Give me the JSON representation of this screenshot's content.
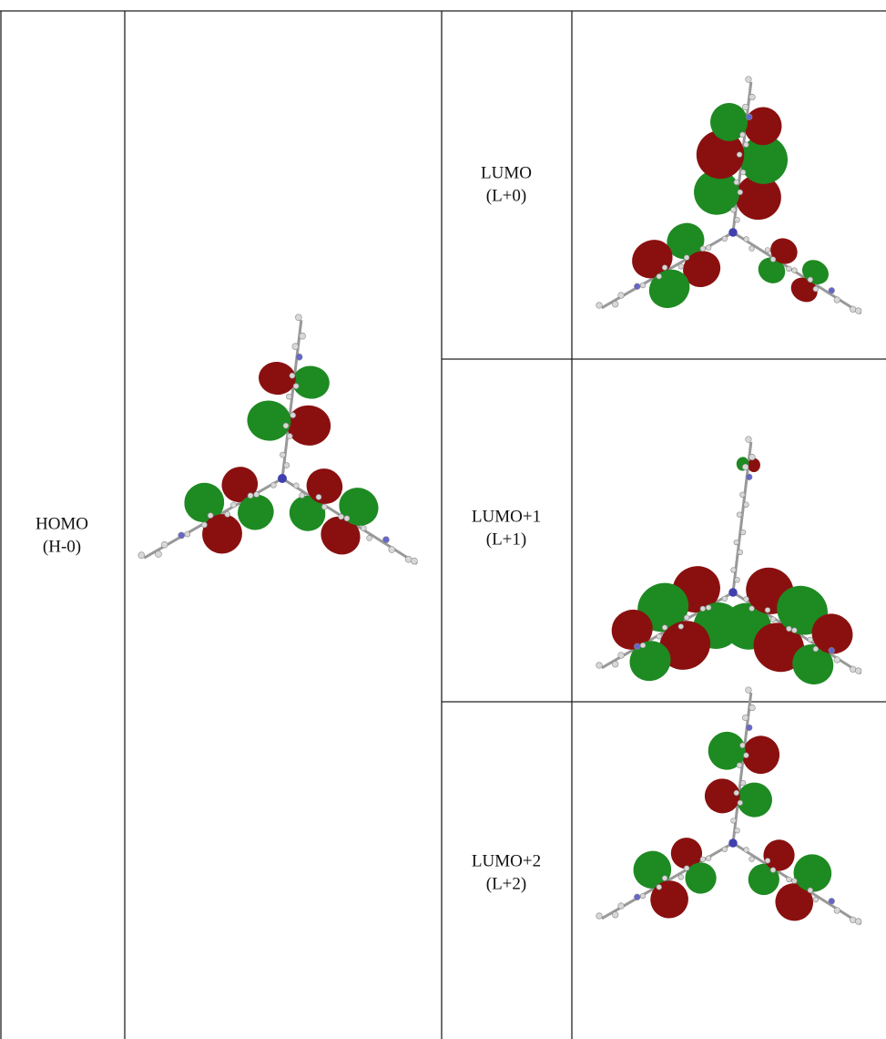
{
  "table": {
    "homo": {
      "label": "HOMO",
      "sublabel": "(H-0)"
    },
    "lumos": [
      {
        "label": "LUMO",
        "sublabel": "(L+0)"
      },
      {
        "label": "LUMO+1",
        "sublabel": "(L+1)"
      },
      {
        "label": "LUMO+2",
        "sublabel": "(L+2)"
      }
    ]
  }
}
